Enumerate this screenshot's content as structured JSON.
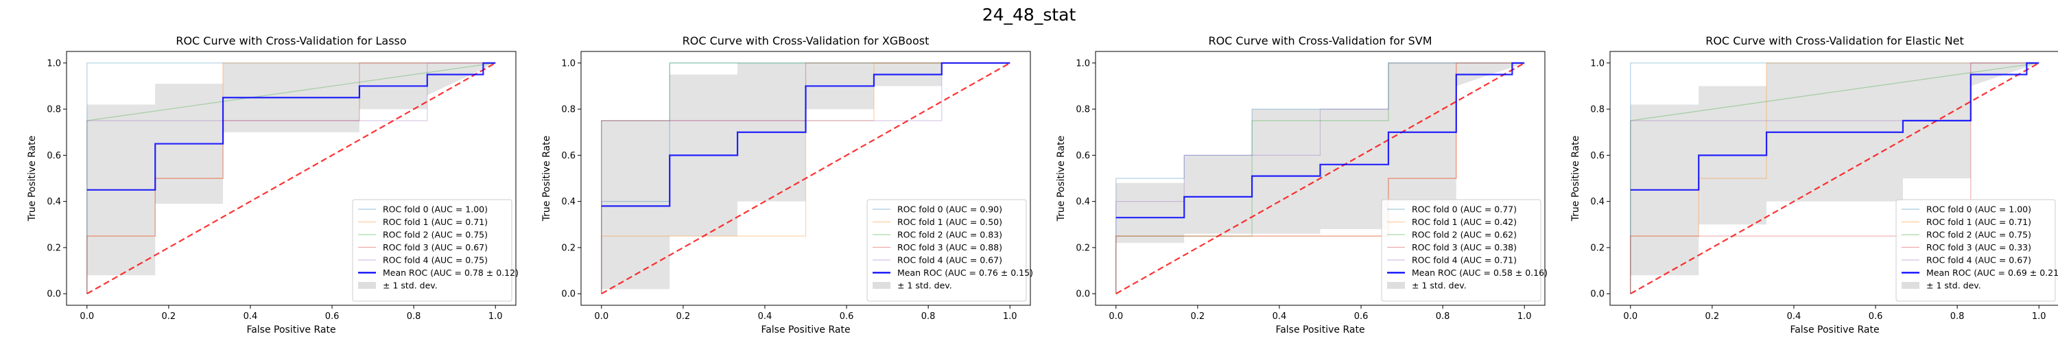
{
  "figure": {
    "suptitle": "24_48_stat"
  },
  "common": {
    "xlabel": "False Positive Rate",
    "ylabel": "True Positive Rate",
    "xlim": [
      -0.05,
      1.05
    ],
    "ylim": [
      -0.05,
      1.05
    ],
    "ticks": [
      0.0,
      0.2,
      0.4,
      0.6,
      0.8,
      1.0
    ],
    "tick_labels": [
      "0.0",
      "0.2",
      "0.4",
      "0.6",
      "0.8",
      "1.0"
    ],
    "fold_colors": [
      "#1f77b4",
      "#ff7f0e",
      "#2ca02c",
      "#d62728",
      "#9467bd"
    ],
    "mean_color": "#0000ff",
    "chance_color": "#ff0000",
    "band_color": "#c8c8c8",
    "legend_placement": "lower right",
    "std_label": "± 1 std. dev."
  },
  "chart_data": [
    {
      "type": "line",
      "title": "ROC Curve with Cross-Validation for Lasso",
      "legend": [
        "ROC fold 0 (AUC = 1.00)",
        "ROC fold 1 (AUC = 0.71)",
        "ROC fold 2 (AUC = 0.75)",
        "ROC fold 3 (AUC = 0.67)",
        "ROC fold 4 (AUC = 0.75)",
        "Mean ROC (AUC = 0.78 ± 0.12)"
      ],
      "folds": [
        {
          "x": [
            0,
            0,
            1
          ],
          "y": [
            0,
            1,
            1
          ]
        },
        {
          "x": [
            0,
            0,
            0.167,
            0.167,
            0.333,
            0.333,
            1
          ],
          "y": [
            0,
            0.25,
            0.25,
            0.5,
            0.5,
            1,
            1
          ]
        },
        {
          "x": [
            0,
            0,
            1
          ],
          "y": [
            0,
            0.75,
            1
          ]
        },
        {
          "x": [
            0,
            0,
            0.167,
            0.167,
            0.333,
            0.333,
            0.667,
            0.667,
            1
          ],
          "y": [
            0,
            0.25,
            0.25,
            0.5,
            0.5,
            0.75,
            0.75,
            1,
            1
          ]
        },
        {
          "x": [
            0,
            0,
            0.333,
            0.333,
            0.833,
            0.833,
            1
          ],
          "y": [
            0,
            0.75,
            0.75,
            0.75,
            0.75,
            1,
            1
          ]
        }
      ],
      "mean": {
        "x": [
          0,
          0.167,
          0.167,
          0.333,
          0.333,
          0.667,
          0.667,
          0.833,
          0.833,
          0.97,
          0.97,
          1
        ],
        "y": [
          0.45,
          0.45,
          0.65,
          0.65,
          0.85,
          0.85,
          0.9,
          0.9,
          0.95,
          0.95,
          1.0,
          1.0
        ]
      },
      "std_band": {
        "x": [
          0,
          0.167,
          0.167,
          0.333,
          0.333,
          0.667,
          0.667,
          0.833,
          0.833,
          1
        ],
        "upper": [
          0.82,
          0.82,
          0.91,
          0.91,
          1.0,
          1.0,
          1.0,
          1.0,
          1.0,
          1.0
        ],
        "lower": [
          0.08,
          0.08,
          0.39,
          0.39,
          0.7,
          0.7,
          0.8,
          0.8,
          0.86,
          1.0
        ]
      }
    },
    {
      "type": "line",
      "title": "ROC Curve with Cross-Validation for XGBoost",
      "legend": [
        "ROC fold 0 (AUC = 0.90)",
        "ROC fold 1 (AUC = 0.50)",
        "ROC fold 2 (AUC = 0.83)",
        "ROC fold 3 (AUC = 0.88)",
        "ROC fold 4 (AUC = 0.67)",
        "Mean ROC (AUC = 0.76 ± 0.15)"
      ],
      "folds": [
        {
          "x": [
            0,
            0,
            0.167,
            0.167,
            1
          ],
          "y": [
            0,
            0.4,
            0.4,
            1,
            1
          ]
        },
        {
          "x": [
            0,
            0,
            0.167,
            0.167,
            0.5,
            0.5,
            0.667,
            0.667,
            1
          ],
          "y": [
            0,
            0.25,
            0.25,
            0.25,
            0.25,
            0.75,
            0.75,
            1,
            1
          ]
        },
        {
          "x": [
            0,
            0,
            0.167,
            0.167,
            1
          ],
          "y": [
            0,
            0.75,
            0.75,
            1,
            1
          ]
        },
        {
          "x": [
            0,
            0,
            0.5,
            0.5,
            1
          ],
          "y": [
            0,
            0.75,
            0.75,
            1,
            1
          ]
        },
        {
          "x": [
            0,
            0,
            0.333,
            0.333,
            0.833,
            0.833,
            1
          ],
          "y": [
            0,
            0.75,
            0.75,
            0.75,
            0.75,
            1,
            1
          ]
        }
      ],
      "mean": {
        "x": [
          0,
          0.167,
          0.167,
          0.333,
          0.333,
          0.5,
          0.5,
          0.667,
          0.667,
          0.833,
          0.833,
          1
        ],
        "y": [
          0.38,
          0.38,
          0.6,
          0.6,
          0.7,
          0.7,
          0.9,
          0.9,
          0.95,
          0.95,
          1.0,
          1.0
        ]
      },
      "std_band": {
        "x": [
          0,
          0.167,
          0.167,
          0.333,
          0.333,
          0.5,
          0.5,
          0.667,
          0.667,
          0.833,
          0.833,
          1
        ],
        "upper": [
          0.75,
          0.75,
          0.95,
          0.95,
          1.0,
          1.0,
          1.0,
          1.0,
          1.0,
          1.0,
          1.0,
          1.0
        ],
        "lower": [
          0.02,
          0.02,
          0.25,
          0.25,
          0.4,
          0.4,
          0.8,
          0.8,
          0.9,
          0.9,
          1.0,
          1.0
        ]
      }
    },
    {
      "type": "line",
      "title": "ROC Curve with Cross-Validation for SVM",
      "legend": [
        "ROC fold 0 (AUC = 0.77)",
        "ROC fold 1 (AUC = 0.42)",
        "ROC fold 2 (AUC = 0.62)",
        "ROC fold 3 (AUC = 0.38)",
        "ROC fold 4 (AUC = 0.71)",
        "Mean ROC (AUC = 0.58 ± 0.16)"
      ],
      "folds": [
        {
          "x": [
            0,
            0,
            0.167,
            0.167,
            0.333,
            0.333,
            0.5,
            0.5,
            0.667,
            0.667,
            1
          ],
          "y": [
            0,
            0.5,
            0.5,
            0.6,
            0.6,
            0.8,
            0.8,
            0.8,
            0.8,
            1,
            1
          ]
        },
        {
          "x": [
            0,
            0,
            0.5,
            0.5,
            0.667,
            0.667,
            0.833,
            0.833,
            1
          ],
          "y": [
            0,
            0.25,
            0.25,
            0.25,
            0.25,
            0.5,
            0.5,
            1,
            1
          ]
        },
        {
          "x": [
            0,
            0,
            0.333,
            0.333,
            0.5,
            0.5,
            0.667,
            0.667,
            1
          ],
          "y": [
            0,
            0.25,
            0.25,
            0.75,
            0.75,
            0.75,
            0.75,
            1,
            1
          ]
        },
        {
          "x": [
            0,
            0,
            0.667,
            0.667,
            0.833,
            0.833,
            1
          ],
          "y": [
            0,
            0.25,
            0.25,
            0.5,
            0.5,
            1,
            1
          ]
        },
        {
          "x": [
            0,
            0,
            0.167,
            0.167,
            0.5,
            0.5,
            0.667,
            0.667,
            1
          ],
          "y": [
            0,
            0.4,
            0.4,
            0.6,
            0.6,
            0.8,
            0.8,
            1,
            1
          ]
        }
      ],
      "mean": {
        "x": [
          0,
          0.167,
          0.167,
          0.333,
          0.333,
          0.5,
          0.5,
          0.667,
          0.667,
          0.833,
          0.833,
          0.97,
          0.97,
          1
        ],
        "y": [
          0.33,
          0.33,
          0.42,
          0.42,
          0.51,
          0.51,
          0.56,
          0.56,
          0.7,
          0.7,
          0.95,
          0.95,
          1.0,
          1.0
        ]
      },
      "std_band": {
        "x": [
          0,
          0.167,
          0.167,
          0.333,
          0.333,
          0.5,
          0.5,
          0.667,
          0.667,
          0.833,
          0.833,
          1
        ],
        "upper": [
          0.48,
          0.48,
          0.6,
          0.6,
          0.8,
          0.8,
          0.8,
          0.8,
          1.0,
          1.0,
          1.0,
          1.0
        ],
        "lower": [
          0.22,
          0.22,
          0.26,
          0.26,
          0.26,
          0.26,
          0.28,
          0.28,
          0.4,
          0.4,
          0.9,
          1.0
        ]
      }
    },
    {
      "type": "line",
      "title": "ROC Curve with Cross-Validation for Elastic Net",
      "legend": [
        "ROC fold 0 (AUC = 1.00)",
        "ROC fold 1 (AUC = 0.71)",
        "ROC fold 2 (AUC = 0.75)",
        "ROC fold 3 (AUC = 0.33)",
        "ROC fold 4 (AUC = 0.67)",
        "Mean ROC (AUC = 0.69 ± 0.21)"
      ],
      "folds": [
        {
          "x": [
            0,
            0,
            1
          ],
          "y": [
            0,
            1,
            1
          ]
        },
        {
          "x": [
            0,
            0,
            0.167,
            0.167,
            0.333,
            0.333,
            1
          ],
          "y": [
            0,
            0.25,
            0.25,
            0.5,
            0.5,
            1,
            1
          ]
        },
        {
          "x": [
            0,
            0,
            1
          ],
          "y": [
            0,
            0.75,
            1
          ]
        },
        {
          "x": [
            0,
            0,
            0.167,
            0.167,
            0.833,
            0.833,
            1
          ],
          "y": [
            0,
            0.25,
            0.25,
            0.25,
            0.25,
            1,
            1
          ]
        },
        {
          "x": [
            0,
            0,
            0.667,
            0.667,
            0.833,
            0.833,
            1
          ],
          "y": [
            0,
            0.75,
            0.75,
            0.75,
            0.75,
            1,
            1
          ]
        }
      ],
      "mean": {
        "x": [
          0,
          0.167,
          0.167,
          0.333,
          0.333,
          0.667,
          0.667,
          0.833,
          0.833,
          0.97,
          0.97,
          1
        ],
        "y": [
          0.45,
          0.45,
          0.6,
          0.6,
          0.7,
          0.7,
          0.75,
          0.75,
          0.95,
          0.95,
          1.0,
          1.0
        ]
      },
      "std_band": {
        "x": [
          0,
          0.167,
          0.167,
          0.333,
          0.333,
          0.667,
          0.667,
          0.833,
          0.833,
          1
        ],
        "upper": [
          0.82,
          0.82,
          0.9,
          0.9,
          1.0,
          1.0,
          1.0,
          1.0,
          1.0,
          1.0
        ],
        "lower": [
          0.08,
          0.08,
          0.3,
          0.3,
          0.4,
          0.4,
          0.5,
          0.5,
          0.9,
          1.0
        ]
      }
    }
  ]
}
